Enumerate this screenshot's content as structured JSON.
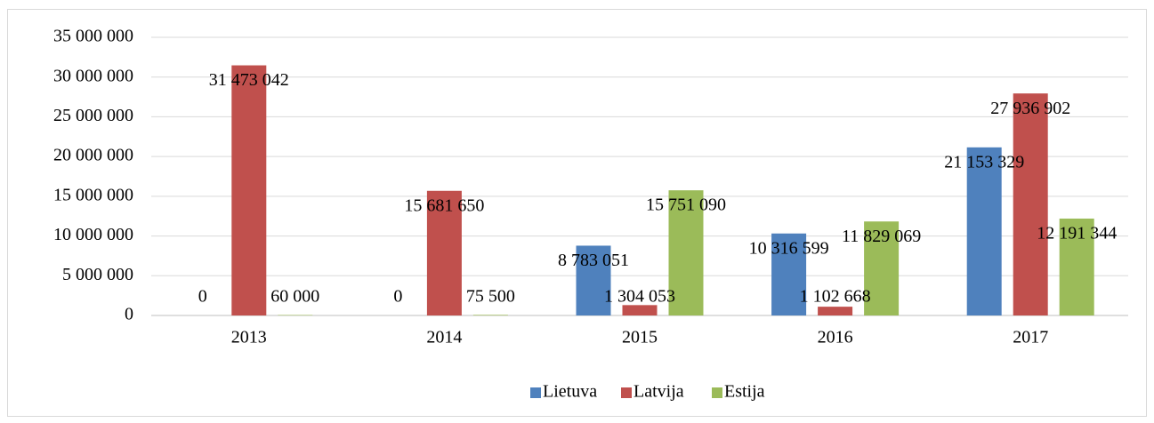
{
  "chart_data": {
    "type": "bar",
    "categories": [
      "2013",
      "2014",
      "2015",
      "2016",
      "2017"
    ],
    "series": [
      {
        "name": "Lietuva",
        "color": "#4f81bd",
        "values": [
          0,
          0,
          8783051,
          10316599,
          21153329
        ],
        "value_labels": [
          "0",
          "0",
          "8 783 051",
          "10 316 599",
          "21 153 329"
        ]
      },
      {
        "name": "Latvija",
        "color": "#c0504d",
        "values": [
          31473042,
          15681650,
          1304053,
          1102668,
          27936902
        ],
        "value_labels": [
          "31 473 042",
          "15 681 650",
          "1 304 053",
          "1 102 668",
          "27 936 902"
        ]
      },
      {
        "name": "Estija",
        "color": "#9bbb59",
        "values": [
          60000,
          75500,
          15751090,
          11829069,
          12191344
        ],
        "value_labels": [
          "60 000",
          "75 500",
          "15 751 090",
          "11 829 069",
          "12 191 344"
        ]
      }
    ],
    "ylim": [
      0,
      35000000
    ],
    "yticks": [
      0,
      {
        "value": 5000000,
        "label": "5 000 000"
      },
      {
        "value": 10000000,
        "label": "10 000 000"
      },
      {
        "value": 15000000,
        "label": "15 000 000"
      },
      {
        "value": 20000000,
        "label": "20 000 000"
      },
      {
        "value": 25000000,
        "label": "25 000 000"
      },
      {
        "value": 30000000,
        "label": "30 000 000"
      },
      {
        "value": 35000000,
        "label": "35 000 000"
      }
    ],
    "grid": true,
    "legend": "bottom"
  }
}
